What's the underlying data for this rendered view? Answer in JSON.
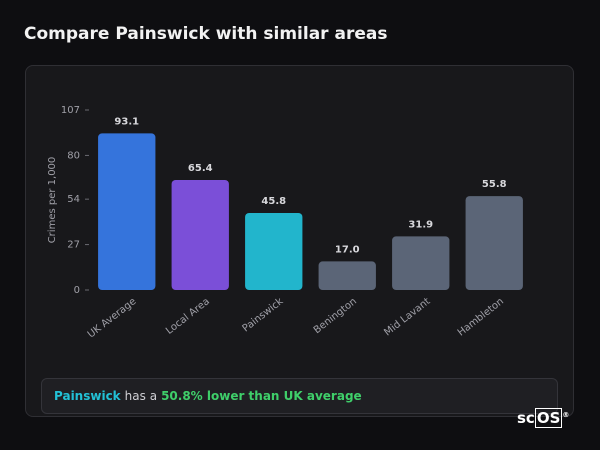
{
  "page_title": "Compare Painswick with similar areas",
  "chart_data": {
    "type": "bar",
    "ylabel": "Crimes per 1,000",
    "categories": [
      "UK Average",
      "Local Area",
      "Painswick",
      "Benington",
      "Mid Lavant",
      "Hambleton"
    ],
    "values": [
      93.1,
      65.4,
      45.8,
      17.0,
      31.9,
      55.8
    ],
    "value_labels": [
      "93.1",
      "65.4",
      "45.8",
      "17.0",
      "31.9",
      "55.8"
    ],
    "colors": [
      "#3574dc",
      "#7b4fd8",
      "#22b5cc",
      "#5b6577",
      "#5b6577",
      "#5b6577"
    ],
    "ylim": [
      0,
      107
    ],
    "yticks": [
      0,
      27,
      54,
      80,
      107
    ],
    "grid": false
  },
  "summary": {
    "place": "Painswick",
    "middle": "has a",
    "highlight": "50.8% lower than UK average"
  },
  "logo": {
    "plain": "sc",
    "boxed": "OS",
    "mark": "®"
  }
}
